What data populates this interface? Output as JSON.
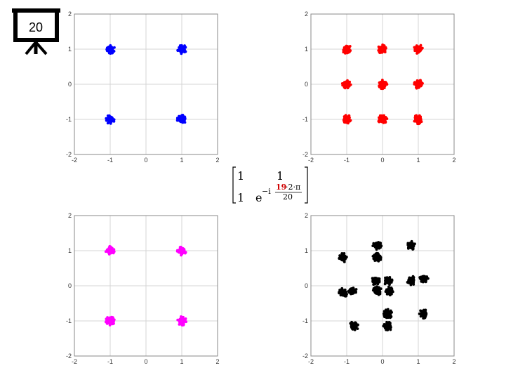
{
  "slide": {
    "number": "20"
  },
  "matrix": {
    "r1c1": "1",
    "r1c2": "1",
    "r2c1": "1",
    "base": "e",
    "exp_prefix": "−i",
    "numerator_red": "19",
    "numerator_rest": "·2·π",
    "denominator": "20"
  },
  "chart_data": [
    {
      "type": "scatter",
      "xlim": [
        -2,
        2
      ],
      "ylim": [
        -2,
        2
      ],
      "xticks": [
        "-2",
        "-1",
        "0",
        "1",
        "2"
      ],
      "yticks": [
        "-2",
        "-1",
        "0",
        "1",
        "2"
      ],
      "grid": true,
      "color": "#0000ff",
      "clusters": [
        [
          -1,
          1
        ],
        [
          1,
          1
        ],
        [
          -1,
          -1
        ],
        [
          1,
          -1
        ]
      ]
    },
    {
      "type": "scatter",
      "xlim": [
        -2,
        2
      ],
      "ylim": [
        -2,
        2
      ],
      "xticks": [
        "-2",
        "-1",
        "0",
        "1",
        "2"
      ],
      "yticks": [
        "-2",
        "-1",
        "0",
        "1",
        "2"
      ],
      "grid": true,
      "color": "#ff0000",
      "clusters": [
        [
          -1,
          1
        ],
        [
          0,
          1
        ],
        [
          1,
          1
        ],
        [
          -1,
          0
        ],
        [
          0,
          0
        ],
        [
          1,
          0
        ],
        [
          -1,
          -1
        ],
        [
          0,
          -1
        ],
        [
          1,
          -1
        ]
      ]
    },
    {
      "type": "scatter",
      "xlim": [
        -2,
        2
      ],
      "ylim": [
        -2,
        2
      ],
      "xticks": [
        "-2",
        "-1",
        "0",
        "1",
        "2"
      ],
      "yticks": [
        "-2",
        "-1",
        "0",
        "1",
        "2"
      ],
      "grid": true,
      "color": "#ff00ff",
      "clusters": [
        [
          -1,
          1
        ],
        [
          1,
          1
        ],
        [
          -1,
          -1
        ],
        [
          1,
          -1
        ]
      ]
    },
    {
      "type": "scatter",
      "xlim": [
        -2,
        2
      ],
      "ylim": [
        -2,
        2
      ],
      "xticks": [
        "-2",
        "-1",
        "0",
        "1",
        "2"
      ],
      "yticks": [
        "-2",
        "-1",
        "0",
        "1",
        "2"
      ],
      "grid": true,
      "color": "#000000",
      "clusters": [
        [
          -0.15,
          1.15
        ],
        [
          0.8,
          1.15
        ],
        [
          -1.1,
          0.8
        ],
        [
          -0.15,
          0.8
        ],
        [
          -0.2,
          0.15
        ],
        [
          0.15,
          0.15
        ],
        [
          0.8,
          0.15
        ],
        [
          1.15,
          0.2
        ],
        [
          -1.1,
          -0.2
        ],
        [
          -0.85,
          -0.15
        ],
        [
          -0.15,
          -0.15
        ],
        [
          0.2,
          -0.15
        ],
        [
          0.15,
          -0.8
        ],
        [
          1.15,
          -0.8
        ],
        [
          -0.8,
          -1.15
        ],
        [
          0.15,
          -1.15
        ]
      ]
    }
  ]
}
